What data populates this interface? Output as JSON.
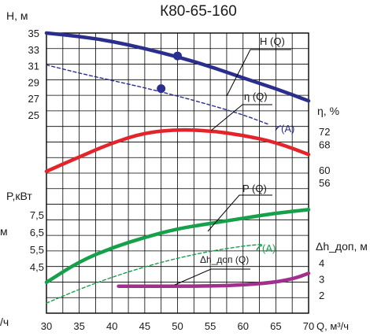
{
  "chart_data": {
    "type": "line",
    "title": "К80-65-160",
    "x": {
      "label": "Q, м³/ч",
      "range": [
        30,
        70
      ],
      "ticks": [
        "30",
        "35",
        "40",
        "45",
        "50",
        "55",
        "60",
        "65",
        "70"
      ]
    },
    "head_axis": {
      "label": "H, м",
      "range": [
        23,
        35
      ],
      "ticks": [
        "35",
        "33",
        "31",
        "29",
        "27",
        "25"
      ]
    },
    "power_axis": {
      "label": "P,кВт",
      "ticks": [
        "7,5",
        "6,5",
        "5,5",
        "4,5"
      ]
    },
    "efficiency_axis": {
      "label": "η, %",
      "ticks": [
        "72",
        "68",
        "60",
        "56"
      ]
    },
    "npsh_axis": {
      "label": "Δh_доп, м",
      "ticks": [
        "4",
        "3",
        "2"
      ]
    },
    "cut_labels": {
      "left_power_unit": "м",
      "left_bottom_unit": "/ч"
    },
    "series": [
      {
        "name": "H (Q)",
        "color": "#2a2e8c",
        "style": "solid",
        "x": [
          30,
          35,
          40,
          45,
          50,
          55,
          60,
          65,
          70
        ],
        "y": [
          35.0,
          34.6,
          34.0,
          33.1,
          32.1,
          30.9,
          29.5,
          28.2,
          26.7
        ]
      },
      {
        "name": "H (A)",
        "color": "#2a2e8c",
        "style": "dashed",
        "x": [
          30,
          35,
          40,
          45,
          50,
          55,
          60,
          64
        ],
        "y": [
          31.1,
          30.1,
          29.2,
          28.3,
          27.3,
          26.2,
          25.0,
          23.8
        ]
      },
      {
        "name": "η (Q)",
        "color": "#e3242b",
        "style": "solid",
        "values_pct": {
          "x": [
            30,
            35,
            40,
            45,
            50,
            55,
            60,
            65,
            70
          ],
          "y": [
            59.5,
            64.0,
            68.4,
            71.6,
            72.6,
            72.2,
            70.8,
            68.6,
            64.8
          ]
        }
      },
      {
        "name": "P (Q)",
        "color": "#16a04a",
        "style": "solid",
        "values_kw": {
          "x": [
            30,
            35,
            40,
            45,
            50,
            55,
            60,
            65,
            70
          ],
          "y": [
            3.6,
            4.8,
            5.6,
            6.2,
            6.7,
            7.0,
            7.3,
            7.6,
            7.8
          ]
        }
      },
      {
        "name": "P (A)",
        "color": "#16a04a",
        "style": "dashed",
        "values_kw": {
          "x": [
            30,
            35,
            40,
            45,
            50,
            55,
            60,
            63
          ],
          "y": [
            2.4,
            3.2,
            3.9,
            4.5,
            5.0,
            5.4,
            5.7,
            5.8
          ]
        }
      },
      {
        "name": "Δh_доп (Q)",
        "color": "#a0308c",
        "style": "solid",
        "values_m": {
          "x": [
            41,
            45,
            50,
            55,
            60,
            65,
            68,
            70
          ],
          "y": [
            2.55,
            2.55,
            2.55,
            2.56,
            2.62,
            2.8,
            3.05,
            3.35
          ]
        }
      }
    ],
    "operating_points": [
      {
        "series": "H (Q)",
        "x": 50,
        "y": 32.2
      },
      {
        "series": "H (A)",
        "x": 47.5,
        "y": 28.2
      }
    ],
    "curve_labels": {
      "hq": "H (Q)",
      "ha": "(A)",
      "eta": "η (Q)",
      "pq": "P (Q)",
      "pa": "(A)",
      "npsh": "Δh_доп (Q)"
    }
  }
}
